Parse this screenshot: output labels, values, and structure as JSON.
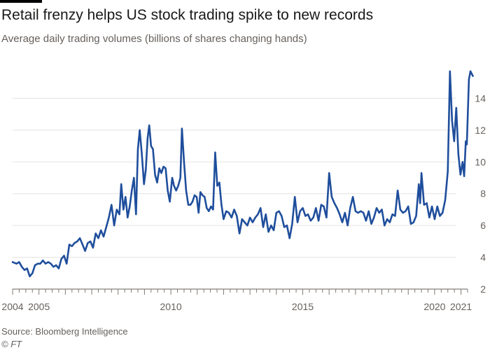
{
  "chart_data": {
    "type": "line",
    "title": "Retail frenzy helps US stock trading spike to new records",
    "subtitle": "Average daily trading volumes (billions of shares changing hands)",
    "xlabel": "",
    "ylabel": "",
    "ylim": [
      2,
      16
    ],
    "xlim": [
      2004.0,
      2021.25
    ],
    "yticks": [
      2,
      4,
      6,
      8,
      10,
      12,
      14
    ],
    "ytick_labels": [
      "2",
      "4",
      "6",
      "8",
      "10",
      "12",
      "14"
    ],
    "xticks": [
      2004,
      2005,
      2010,
      2015,
      2020,
      2021
    ],
    "xtick_labels": [
      "2004",
      "2005",
      "2010",
      "2015",
      "2020",
      "2021"
    ],
    "grid": true,
    "series": [
      {
        "name": "Average daily trading volume",
        "color": "#1f4e9c",
        "points": [
          [
            2004.0,
            3.7
          ],
          [
            2004.15,
            3.6
          ],
          [
            2004.25,
            3.7
          ],
          [
            2004.35,
            3.4
          ],
          [
            2004.45,
            3.2
          ],
          [
            2004.55,
            3.3
          ],
          [
            2004.65,
            2.8
          ],
          [
            2004.75,
            3.0
          ],
          [
            2004.85,
            3.5
          ],
          [
            2004.95,
            3.6
          ],
          [
            2005.05,
            3.6
          ],
          [
            2005.15,
            3.8
          ],
          [
            2005.25,
            3.6
          ],
          [
            2005.35,
            3.7
          ],
          [
            2005.45,
            3.6
          ],
          [
            2005.55,
            3.4
          ],
          [
            2005.65,
            3.5
          ],
          [
            2005.75,
            3.3
          ],
          [
            2005.85,
            3.9
          ],
          [
            2005.95,
            4.1
          ],
          [
            2006.05,
            3.6
          ],
          [
            2006.15,
            4.8
          ],
          [
            2006.25,
            4.7
          ],
          [
            2006.35,
            4.9
          ],
          [
            2006.45,
            5.0
          ],
          [
            2006.55,
            5.2
          ],
          [
            2006.65,
            4.8
          ],
          [
            2006.75,
            4.4
          ],
          [
            2006.85,
            4.9
          ],
          [
            2006.95,
            5.0
          ],
          [
            2007.05,
            4.6
          ],
          [
            2007.15,
            5.5
          ],
          [
            2007.25,
            5.2
          ],
          [
            2007.35,
            5.7
          ],
          [
            2007.45,
            5.3
          ],
          [
            2007.55,
            5.9
          ],
          [
            2007.65,
            6.5
          ],
          [
            2007.75,
            7.3
          ],
          [
            2007.85,
            6.0
          ],
          [
            2007.95,
            7.0
          ],
          [
            2008.05,
            6.7
          ],
          [
            2008.12,
            8.6
          ],
          [
            2008.2,
            7.0
          ],
          [
            2008.28,
            7.8
          ],
          [
            2008.36,
            6.5
          ],
          [
            2008.44,
            7.2
          ],
          [
            2008.52,
            8.2
          ],
          [
            2008.6,
            9.0
          ],
          [
            2008.68,
            6.7
          ],
          [
            2008.75,
            10.8
          ],
          [
            2008.82,
            12.0
          ],
          [
            2008.9,
            10.5
          ],
          [
            2008.98,
            8.6
          ],
          [
            2009.05,
            9.5
          ],
          [
            2009.12,
            11.5
          ],
          [
            2009.18,
            12.3
          ],
          [
            2009.25,
            11.0
          ],
          [
            2009.32,
            10.8
          ],
          [
            2009.4,
            9.2
          ],
          [
            2009.48,
            8.7
          ],
          [
            2009.56,
            9.6
          ],
          [
            2009.64,
            9.3
          ],
          [
            2009.72,
            9.7
          ],
          [
            2009.8,
            9.6
          ],
          [
            2009.88,
            8.2
          ],
          [
            2009.96,
            7.5
          ],
          [
            2010.05,
            9.0
          ],
          [
            2010.12,
            8.5
          ],
          [
            2010.2,
            8.2
          ],
          [
            2010.28,
            8.5
          ],
          [
            2010.36,
            9.0
          ],
          [
            2010.42,
            12.1
          ],
          [
            2010.5,
            10.0
          ],
          [
            2010.58,
            8.2
          ],
          [
            2010.66,
            7.3
          ],
          [
            2010.74,
            7.3
          ],
          [
            2010.82,
            7.5
          ],
          [
            2010.9,
            7.9
          ],
          [
            2010.98,
            7.8
          ],
          [
            2011.05,
            6.8
          ],
          [
            2011.12,
            8.1
          ],
          [
            2011.2,
            7.9
          ],
          [
            2011.28,
            7.8
          ],
          [
            2011.36,
            7.1
          ],
          [
            2011.44,
            6.9
          ],
          [
            2011.52,
            7.2
          ],
          [
            2011.6,
            7.0
          ],
          [
            2011.68,
            10.6
          ],
          [
            2011.76,
            8.5
          ],
          [
            2011.84,
            8.7
          ],
          [
            2011.92,
            7.3
          ],
          [
            2012.0,
            6.4
          ],
          [
            2012.1,
            6.9
          ],
          [
            2012.2,
            6.8
          ],
          [
            2012.3,
            6.5
          ],
          [
            2012.4,
            7.0
          ],
          [
            2012.5,
            6.6
          ],
          [
            2012.6,
            5.5
          ],
          [
            2012.7,
            6.4
          ],
          [
            2012.8,
            6.2
          ],
          [
            2012.9,
            6.0
          ],
          [
            2013.0,
            6.5
          ],
          [
            2013.1,
            6.2
          ],
          [
            2013.2,
            6.5
          ],
          [
            2013.3,
            6.7
          ],
          [
            2013.4,
            7.1
          ],
          [
            2013.5,
            5.9
          ],
          [
            2013.6,
            6.7
          ],
          [
            2013.7,
            5.6
          ],
          [
            2013.8,
            6.0
          ],
          [
            2013.9,
            5.7
          ],
          [
            2014.0,
            6.8
          ],
          [
            2014.1,
            6.9
          ],
          [
            2014.2,
            6.6
          ],
          [
            2014.3,
            5.9
          ],
          [
            2014.4,
            6.0
          ],
          [
            2014.5,
            5.2
          ],
          [
            2014.6,
            6.1
          ],
          [
            2014.7,
            7.8
          ],
          [
            2014.8,
            6.2
          ],
          [
            2014.9,
            6.9
          ],
          [
            2015.0,
            7.1
          ],
          [
            2015.1,
            6.6
          ],
          [
            2015.2,
            6.7
          ],
          [
            2015.3,
            6.3
          ],
          [
            2015.4,
            6.5
          ],
          [
            2015.5,
            7.1
          ],
          [
            2015.6,
            6.3
          ],
          [
            2015.7,
            7.3
          ],
          [
            2015.8,
            7.2
          ],
          [
            2015.9,
            6.5
          ],
          [
            2016.0,
            9.3
          ],
          [
            2016.1,
            7.8
          ],
          [
            2016.2,
            7.4
          ],
          [
            2016.3,
            7.1
          ],
          [
            2016.4,
            6.7
          ],
          [
            2016.5,
            6.2
          ],
          [
            2016.6,
            6.8
          ],
          [
            2016.7,
            6.0
          ],
          [
            2016.8,
            7.1
          ],
          [
            2016.9,
            7.8
          ],
          [
            2017.0,
            6.9
          ],
          [
            2017.1,
            6.8
          ],
          [
            2017.2,
            6.9
          ],
          [
            2017.3,
            6.8
          ],
          [
            2017.4,
            6.3
          ],
          [
            2017.5,
            6.9
          ],
          [
            2017.6,
            6.1
          ],
          [
            2017.7,
            6.5
          ],
          [
            2017.8,
            7.1
          ],
          [
            2017.9,
            6.8
          ],
          [
            2018.0,
            7.0
          ],
          [
            2018.1,
            6.0
          ],
          [
            2018.2,
            6.4
          ],
          [
            2018.3,
            6.2
          ],
          [
            2018.4,
            6.7
          ],
          [
            2018.5,
            6.6
          ],
          [
            2018.6,
            8.2
          ],
          [
            2018.7,
            7.0
          ],
          [
            2018.8,
            6.8
          ],
          [
            2018.9,
            6.9
          ],
          [
            2019.0,
            7.2
          ],
          [
            2019.1,
            6.1
          ],
          [
            2019.2,
            6.2
          ],
          [
            2019.3,
            6.6
          ],
          [
            2019.4,
            8.6
          ],
          [
            2019.45,
            7.4
          ],
          [
            2019.5,
            9.3
          ],
          [
            2019.6,
            7.3
          ],
          [
            2019.7,
            7.4
          ],
          [
            2019.8,
            6.5
          ],
          [
            2019.9,
            7.2
          ],
          [
            2020.0,
            6.4
          ],
          [
            2020.1,
            7.2
          ],
          [
            2020.2,
            6.6
          ],
          [
            2020.3,
            6.8
          ],
          [
            2020.4,
            7.6
          ],
          [
            2020.5,
            9.4
          ],
          [
            2020.58,
            15.7
          ],
          [
            2020.66,
            12.6
          ],
          [
            2020.74,
            11.3
          ],
          [
            2020.82,
            13.4
          ],
          [
            2020.9,
            10.5
          ],
          [
            2020.98,
            9.2
          ],
          [
            2021.06,
            10.0
          ],
          [
            2021.12,
            9.1
          ],
          [
            2021.18,
            11.3
          ],
          [
            2021.22,
            11.1
          ],
          [
            2021.3,
            15.2
          ],
          [
            2021.36,
            15.7
          ],
          [
            2021.45,
            15.4
          ]
        ]
      }
    ],
    "source": "Source: Bloomberg Intelligence",
    "copyright": "© FT"
  }
}
